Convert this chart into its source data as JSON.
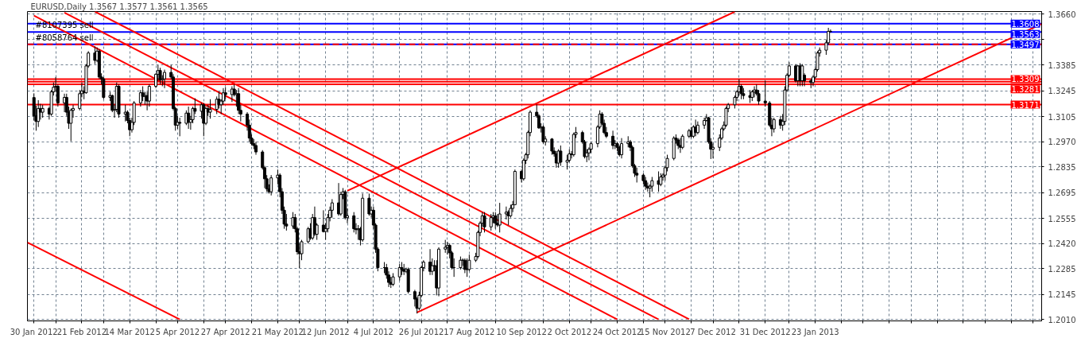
{
  "chart_data": {
    "type": "candlestick",
    "title": "EURUSD,Daily  1.3567 1.3577 1.3561 1.3565",
    "x": [
      "2012-01-30",
      "2012-01-31",
      "2012-02-01",
      "2012-02-02",
      "2012-02-03",
      "2012-02-06",
      "2012-02-07",
      "2012-02-08",
      "2012-02-09",
      "2012-02-10",
      "2012-02-13",
      "2012-02-14",
      "2012-02-15",
      "2012-02-16",
      "2012-02-17",
      "2012-02-20",
      "2012-02-21",
      "2012-02-22",
      "2012-02-23",
      "2012-02-24",
      "2012-02-27",
      "2012-02-28",
      "2012-02-29",
      "2012-03-01",
      "2012-03-02",
      "2012-03-05",
      "2012-03-06",
      "2012-03-07",
      "2012-03-08",
      "2012-03-09",
      "2012-03-12",
      "2012-03-13",
      "2012-03-14",
      "2012-03-15",
      "2012-03-16",
      "2012-03-19",
      "2012-03-20",
      "2012-03-21",
      "2012-03-22",
      "2012-03-23",
      "2012-03-26",
      "2012-03-27",
      "2012-03-28",
      "2012-03-29",
      "2012-03-30",
      "2012-04-02",
      "2012-04-03",
      "2012-04-04",
      "2012-04-05",
      "2012-04-06",
      "2012-04-09",
      "2012-04-10",
      "2012-04-11",
      "2012-04-12",
      "2012-04-13",
      "2012-04-16",
      "2012-04-17",
      "2012-04-18",
      "2012-04-19",
      "2012-04-20",
      "2012-04-23",
      "2012-04-24",
      "2012-04-25",
      "2012-04-26",
      "2012-04-27",
      "2012-04-30",
      "2012-05-01",
      "2012-05-02",
      "2012-05-03",
      "2012-05-04",
      "2012-05-07",
      "2012-05-08",
      "2012-05-09",
      "2012-05-10",
      "2012-05-11",
      "2012-05-14",
      "2012-05-15",
      "2012-05-16",
      "2012-05-17",
      "2012-05-18",
      "2012-05-21",
      "2012-05-22",
      "2012-05-23",
      "2012-05-24",
      "2012-05-25",
      "2012-05-28",
      "2012-05-29",
      "2012-05-30",
      "2012-05-31",
      "2012-06-01",
      "2012-06-04",
      "2012-06-05",
      "2012-06-06",
      "2012-06-07",
      "2012-06-08",
      "2012-06-11",
      "2012-06-12",
      "2012-06-13",
      "2012-06-14",
      "2012-06-15",
      "2012-06-18",
      "2012-06-19",
      "2012-06-20",
      "2012-06-21",
      "2012-06-22",
      "2012-06-25",
      "2012-06-26",
      "2012-06-27",
      "2012-06-28",
      "2012-06-29",
      "2012-07-02",
      "2012-07-03",
      "2012-07-04",
      "2012-07-05",
      "2012-07-06",
      "2012-07-09",
      "2012-07-10",
      "2012-07-11",
      "2012-07-12",
      "2012-07-13",
      "2012-07-16",
      "2012-07-17",
      "2012-07-18",
      "2012-07-19",
      "2012-07-20",
      "2012-07-23",
      "2012-07-24",
      "2012-07-25",
      "2012-07-26",
      "2012-07-27",
      "2012-07-30",
      "2012-07-31",
      "2012-08-01",
      "2012-08-02",
      "2012-08-03",
      "2012-08-06",
      "2012-08-07",
      "2012-08-08",
      "2012-08-09",
      "2012-08-10",
      "2012-08-13",
      "2012-08-14",
      "2012-08-15",
      "2012-08-16",
      "2012-08-17",
      "2012-08-20",
      "2012-08-21",
      "2012-08-22",
      "2012-08-23",
      "2012-08-24",
      "2012-08-27",
      "2012-08-28",
      "2012-08-29",
      "2012-08-30",
      "2012-08-31",
      "2012-09-03",
      "2012-09-04",
      "2012-09-05",
      "2012-09-06",
      "2012-09-07",
      "2012-09-10",
      "2012-09-11",
      "2012-09-12",
      "2012-09-13",
      "2012-09-14",
      "2012-09-17",
      "2012-09-18",
      "2012-09-19",
      "2012-09-20",
      "2012-09-21",
      "2012-09-24",
      "2012-09-25",
      "2012-09-26",
      "2012-09-27",
      "2012-09-28",
      "2012-10-01",
      "2012-10-02",
      "2012-10-03",
      "2012-10-04",
      "2012-10-05",
      "2012-10-08",
      "2012-10-09",
      "2012-10-10",
      "2012-10-11",
      "2012-10-12",
      "2012-10-15",
      "2012-10-16",
      "2012-10-17",
      "2012-10-18",
      "2012-10-19",
      "2012-10-22",
      "2012-10-23",
      "2012-10-24",
      "2012-10-25",
      "2012-10-26",
      "2012-10-29",
      "2012-10-30",
      "2012-10-31",
      "2012-11-01",
      "2012-11-02",
      "2012-11-05",
      "2012-11-06",
      "2012-11-07",
      "2012-11-08",
      "2012-11-09",
      "2012-11-12",
      "2012-11-13",
      "2012-11-14",
      "2012-11-15",
      "2012-11-16",
      "2012-11-19",
      "2012-11-20",
      "2012-11-21",
      "2012-11-22",
      "2012-11-23",
      "2012-11-26",
      "2012-11-27",
      "2012-11-28",
      "2012-11-29",
      "2012-11-30",
      "2012-12-03",
      "2012-12-04",
      "2012-12-05",
      "2012-12-06",
      "2012-12-07",
      "2012-12-10",
      "2012-12-11",
      "2012-12-12",
      "2012-12-13",
      "2012-12-14",
      "2012-12-17",
      "2012-12-18",
      "2012-12-19",
      "2012-12-20",
      "2012-12-21",
      "2012-12-24",
      "2012-12-25",
      "2012-12-26",
      "2012-12-27",
      "2012-12-28",
      "2012-12-31",
      "2013-01-02",
      "2013-01-03",
      "2013-01-04",
      "2013-01-07",
      "2013-01-08",
      "2013-01-09",
      "2013-01-10",
      "2013-01-11",
      "2013-01-14",
      "2013-01-15",
      "2013-01-16",
      "2013-01-17",
      "2013-01-18",
      "2013-01-21",
      "2013-01-22",
      "2013-01-23",
      "2013-01-24",
      "2013-01-25",
      "2013-01-28",
      "2013-01-29",
      "2013-01-30"
    ],
    "ohlc": [
      [
        1.3209,
        1.3232,
        1.3085,
        1.311
      ],
      [
        1.311,
        1.3165,
        1.303,
        1.308
      ],
      [
        1.308,
        1.3195,
        1.305,
        1.315
      ],
      [
        1.315,
        1.3175,
        1.309,
        1.313
      ],
      [
        1.313,
        1.317,
        1.31,
        1.315
      ],
      [
        1.315,
        1.316,
        1.309,
        1.312
      ],
      [
        1.312,
        1.325,
        1.311,
        1.324
      ],
      [
        1.324,
        1.329,
        1.322,
        1.3265
      ],
      [
        1.3265,
        1.332,
        1.324,
        1.327
      ],
      [
        1.327,
        1.328,
        1.316,
        1.318
      ],
      [
        1.318,
        1.323,
        1.313,
        1.321
      ],
      [
        1.321,
        1.323,
        1.311,
        1.313
      ],
      [
        1.313,
        1.316,
        1.304,
        1.307
      ],
      [
        1.307,
        1.315,
        1.2973,
        1.314
      ],
      [
        1.314,
        1.317,
        1.31,
        1.315
      ],
      [
        1.315,
        1.325,
        1.314,
        1.323
      ],
      [
        1.323,
        1.329,
        1.321,
        1.3245
      ],
      [
        1.3245,
        1.327,
        1.32,
        1.3235
      ],
      [
        1.3235,
        1.339,
        1.323,
        1.338
      ],
      [
        1.338,
        1.346,
        1.337,
        1.345
      ],
      [
        1.345,
        1.3486,
        1.339,
        1.341
      ],
      [
        1.341,
        1.348,
        1.34,
        1.346
      ],
      [
        1.346,
        1.347,
        1.331,
        1.332
      ],
      [
        1.332,
        1.334,
        1.328,
        1.331
      ],
      [
        1.331,
        1.332,
        1.32,
        1.321
      ],
      [
        1.321,
        1.324,
        1.319,
        1.322
      ],
      [
        1.322,
        1.3225,
        1.313,
        1.314
      ],
      [
        1.314,
        1.317,
        1.31,
        1.3145
      ],
      [
        1.3145,
        1.329,
        1.313,
        1.327
      ],
      [
        1.327,
        1.328,
        1.31,
        1.312
      ],
      [
        1.312,
        1.317,
        1.308,
        1.313
      ],
      [
        1.313,
        1.314,
        1.307,
        1.3085
      ],
      [
        1.3085,
        1.31,
        1.3,
        1.3035
      ],
      [
        1.3035,
        1.31,
        1.302,
        1.3075
      ],
      [
        1.3075,
        1.319,
        1.306,
        1.318
      ],
      [
        1.318,
        1.325,
        1.316,
        1.3235
      ],
      [
        1.3235,
        1.327,
        1.319,
        1.3215
      ],
      [
        1.3215,
        1.324,
        1.317,
        1.322
      ],
      [
        1.322,
        1.324,
        1.314,
        1.319
      ],
      [
        1.319,
        1.328,
        1.316,
        1.327
      ],
      [
        1.327,
        1.334,
        1.326,
        1.3335
      ],
      [
        1.3335,
        1.3385,
        1.33,
        1.3355
      ],
      [
        1.3355,
        1.337,
        1.328,
        1.3305
      ],
      [
        1.3305,
        1.333,
        1.327,
        1.331
      ],
      [
        1.331,
        1.336,
        1.326,
        1.3345
      ],
      [
        1.3345,
        1.3385,
        1.331,
        1.332
      ],
      [
        1.332,
        1.3335,
        1.314,
        1.315
      ],
      [
        1.315,
        1.316,
        1.303,
        1.306
      ],
      [
        1.306,
        1.311,
        1.304,
        1.3075
      ],
      [
        1.3075,
        1.31,
        1.3,
        1.307
      ],
      [
        1.307,
        1.314,
        1.306,
        1.3125
      ],
      [
        1.3125,
        1.316,
        1.304,
        1.3075
      ],
      [
        1.3075,
        1.311,
        1.3035,
        1.309
      ],
      [
        1.309,
        1.316,
        1.307,
        1.315
      ],
      [
        1.315,
        1.3205,
        1.312,
        1.3135
      ],
      [
        1.3135,
        1.318,
        1.3095,
        1.317
      ],
      [
        1.317,
        1.318,
        1.3,
        1.307
      ],
      [
        1.307,
        1.316,
        1.306,
        1.315
      ],
      [
        1.315,
        1.317,
        1.311,
        1.313
      ],
      [
        1.313,
        1.32,
        1.3095,
        1.3145
      ],
      [
        1.3145,
        1.3215,
        1.312,
        1.32
      ],
      [
        1.32,
        1.324,
        1.315,
        1.317
      ],
      [
        1.317,
        1.32,
        1.312,
        1.319
      ],
      [
        1.319,
        1.326,
        1.317,
        1.3235
      ],
      [
        1.3235,
        1.3265,
        1.32,
        1.3225
      ],
      [
        1.3225,
        1.327,
        1.3185,
        1.3255
      ],
      [
        1.3255,
        1.328,
        1.3215,
        1.3225
      ],
      [
        1.3225,
        1.325,
        1.316,
        1.323
      ],
      [
        1.323,
        1.326,
        1.312,
        1.314
      ],
      [
        1.314,
        1.317,
        1.308,
        1.312
      ],
      [
        1.312,
        1.313,
        1.303,
        1.306
      ],
      [
        1.306,
        1.309,
        1.297,
        1.299
      ],
      [
        1.299,
        1.301,
        1.295,
        1.296
      ],
      [
        1.296,
        1.2985,
        1.293,
        1.295
      ],
      [
        1.295,
        1.297,
        1.29,
        1.2915
      ],
      [
        1.2915,
        1.2925,
        1.282,
        1.283
      ],
      [
        1.283,
        1.284,
        1.272,
        1.277
      ],
      [
        1.277,
        1.279,
        1.27,
        1.2715
      ],
      [
        1.2715,
        1.274,
        1.269,
        1.27
      ],
      [
        1.27,
        1.279,
        1.268,
        1.2775
      ],
      [
        1.2775,
        1.282,
        1.274,
        1.279
      ],
      [
        1.279,
        1.28,
        1.267,
        1.27
      ],
      [
        1.27,
        1.272,
        1.258,
        1.26
      ],
      [
        1.26,
        1.262,
        1.25,
        1.2525
      ],
      [
        1.2525,
        1.258,
        1.249,
        1.2515
      ],
      [
        1.2515,
        1.259,
        1.25,
        1.256
      ],
      [
        1.256,
        1.258,
        1.248,
        1.25
      ],
      [
        1.25,
        1.251,
        1.236,
        1.2376
      ],
      [
        1.2376,
        1.242,
        1.2288,
        1.2365
      ],
      [
        1.2365,
        1.244,
        1.233,
        1.243
      ],
      [
        1.243,
        1.251,
        1.242,
        1.25
      ],
      [
        1.25,
        1.253,
        1.244,
        1.245
      ],
      [
        1.245,
        1.258,
        1.244,
        1.256
      ],
      [
        1.256,
        1.262,
        1.246,
        1.247
      ],
      [
        1.247,
        1.253,
        1.244,
        1.252
      ],
      [
        1.252,
        1.26,
        1.248,
        1.2485
      ],
      [
        1.2485,
        1.253,
        1.244,
        1.25
      ],
      [
        1.25,
        1.258,
        1.248,
        1.256
      ],
      [
        1.256,
        1.262,
        1.254,
        1.26
      ],
      [
        1.26,
        1.266,
        1.256,
        1.264
      ],
      [
        1.264,
        1.2747,
        1.257,
        1.258
      ],
      [
        1.258,
        1.27,
        1.257,
        1.2685
      ],
      [
        1.2685,
        1.272,
        1.266,
        1.27
      ],
      [
        1.27,
        1.271,
        1.255,
        1.256
      ],
      [
        1.256,
        1.261,
        1.253,
        1.257
      ],
      [
        1.257,
        1.259,
        1.248,
        1.25
      ],
      [
        1.25,
        1.253,
        1.247,
        1.2495
      ],
      [
        1.2495,
        1.252,
        1.244,
        1.25
      ],
      [
        1.25,
        1.251,
        1.241,
        1.244
      ],
      [
        1.244,
        1.269,
        1.243,
        1.2665
      ],
      [
        1.2665,
        1.269,
        1.257,
        1.258
      ],
      [
        1.258,
        1.262,
        1.256,
        1.26
      ],
      [
        1.26,
        1.262,
        1.25,
        1.252
      ],
      [
        1.252,
        1.253,
        1.237,
        1.239
      ],
      [
        1.239,
        1.24,
        1.227,
        1.229
      ],
      [
        1.229,
        1.232,
        1.226,
        1.229
      ],
      [
        1.229,
        1.231,
        1.223,
        1.225
      ],
      [
        1.225,
        1.227,
        1.2185,
        1.221
      ],
      [
        1.221,
        1.224,
        1.218,
        1.22
      ],
      [
        1.22,
        1.226,
        1.219,
        1.224
      ],
      [
        1.224,
        1.231,
        1.222,
        1.229
      ],
      [
        1.229,
        1.232,
        1.225,
        1.228
      ],
      [
        1.228,
        1.231,
        1.225,
        1.227
      ],
      [
        1.227,
        1.229,
        1.226,
        1.228
      ],
      [
        1.228,
        1.229,
        1.215,
        1.216
      ],
      [
        1.216,
        1.217,
        1.208,
        1.212
      ],
      [
        1.212,
        1.213,
        1.2042,
        1.207
      ],
      [
        1.207,
        1.216,
        1.206,
        1.214
      ],
      [
        1.214,
        1.23,
        1.213,
        1.229
      ],
      [
        1.229,
        1.233,
        1.227,
        1.232
      ],
      [
        1.232,
        1.239,
        1.225,
        1.227
      ],
      [
        1.227,
        1.234,
        1.225,
        1.23
      ],
      [
        1.23,
        1.233,
        1.227,
        1.23
      ],
      [
        1.23,
        1.233,
        1.214,
        1.218
      ],
      [
        1.218,
        1.24,
        1.2135,
        1.239
      ],
      [
        1.239,
        1.244,
        1.237,
        1.24
      ],
      [
        1.24,
        1.243,
        1.236,
        1.241
      ],
      [
        1.241,
        1.242,
        1.234,
        1.237
      ],
      [
        1.237,
        1.238,
        1.228,
        1.229
      ],
      [
        1.229,
        1.234,
        1.224,
        1.229
      ],
      [
        1.229,
        1.235,
        1.228,
        1.233
      ],
      [
        1.233,
        1.234,
        1.23,
        1.233
      ],
      [
        1.233,
        1.234,
        1.226,
        1.228
      ],
      [
        1.228,
        1.234,
        1.224,
        1.228
      ],
      [
        1.228,
        1.236,
        1.227,
        1.233
      ],
      [
        1.233,
        1.237,
        1.232,
        1.235
      ],
      [
        1.235,
        1.249,
        1.234,
        1.248
      ],
      [
        1.248,
        1.254,
        1.246,
        1.253
      ],
      [
        1.253,
        1.259,
        1.251,
        1.257
      ],
      [
        1.257,
        1.259,
        1.248,
        1.251
      ],
      [
        1.251,
        1.258,
        1.249,
        1.256
      ],
      [
        1.256,
        1.259,
        1.253,
        1.257
      ],
      [
        1.257,
        1.259,
        1.25,
        1.253
      ],
      [
        1.253,
        1.258,
        1.251,
        1.252
      ],
      [
        1.252,
        1.264,
        1.248,
        1.258
      ],
      [
        1.258,
        1.262,
        1.255,
        1.259
      ],
      [
        1.259,
        1.26,
        1.252,
        1.257
      ],
      [
        1.257,
        1.263,
        1.256,
        1.261
      ],
      [
        1.261,
        1.265,
        1.259,
        1.263
      ],
      [
        1.263,
        1.282,
        1.263,
        1.281
      ],
      [
        1.281,
        1.282,
        1.275,
        1.277
      ],
      [
        1.277,
        1.288,
        1.276,
        1.287
      ],
      [
        1.287,
        1.291,
        1.285,
        1.29
      ],
      [
        1.29,
        1.303,
        1.288,
        1.302
      ],
      [
        1.302,
        1.314,
        1.3,
        1.313
      ],
      [
        1.313,
        1.3172,
        1.31,
        1.311
      ],
      [
        1.311,
        1.312,
        1.304,
        1.3045
      ],
      [
        1.3045,
        1.307,
        1.302,
        1.305
      ],
      [
        1.305,
        1.306,
        1.296,
        1.297
      ],
      [
        1.297,
        1.3,
        1.295,
        1.2985
      ],
      [
        1.2985,
        1.299,
        1.29,
        1.292
      ],
      [
        1.292,
        1.294,
        1.289,
        1.2905
      ],
      [
        1.2905,
        1.292,
        1.283,
        1.2855
      ],
      [
        1.2855,
        1.293,
        1.283,
        1.292
      ],
      [
        1.292,
        1.295,
        1.284,
        1.286
      ],
      [
        1.286,
        1.29,
        1.282,
        1.287
      ],
      [
        1.287,
        1.293,
        1.286,
        1.2905
      ],
      [
        1.2905,
        1.292,
        1.288,
        1.29
      ],
      [
        1.29,
        1.302,
        1.289,
        1.301
      ],
      [
        1.301,
        1.305,
        1.299,
        1.302
      ],
      [
        1.302,
        1.303,
        1.296,
        1.297
      ],
      [
        1.297,
        1.298,
        1.288,
        1.289
      ],
      [
        1.289,
        1.293,
        1.286,
        1.291
      ],
      [
        1.291,
        1.294,
        1.287,
        1.293
      ],
      [
        1.293,
        1.297,
        1.291,
        1.296
      ],
      [
        1.296,
        1.306,
        1.294,
        1.305
      ],
      [
        1.305,
        1.314,
        1.304,
        1.312
      ],
      [
        1.312,
        1.313,
        1.306,
        1.307
      ],
      [
        1.307,
        1.309,
        1.301,
        1.302
      ],
      [
        1.302,
        1.305,
        1.299,
        1.3
      ],
      [
        1.3,
        1.303,
        1.293,
        1.295
      ],
      [
        1.295,
        1.298,
        1.293,
        1.296
      ],
      [
        1.296,
        1.297,
        1.292,
        1.294
      ],
      [
        1.294,
        1.295,
        1.289,
        1.29
      ],
      [
        1.29,
        1.299,
        1.288,
        1.296
      ],
      [
        1.296,
        1.3,
        1.294,
        1.297
      ],
      [
        1.297,
        1.298,
        1.292,
        1.294
      ],
      [
        1.294,
        1.295,
        1.283,
        1.284
      ],
      [
        1.284,
        1.285,
        1.278,
        1.28
      ],
      [
        1.28,
        1.283,
        1.275,
        1.279
      ],
      [
        1.279,
        1.28,
        1.274,
        1.276
      ],
      [
        1.276,
        1.278,
        1.271,
        1.273
      ],
      [
        1.273,
        1.275,
        1.27,
        1.272
      ],
      [
        1.272,
        1.274,
        1.267,
        1.273
      ],
      [
        1.273,
        1.278,
        1.27,
        1.276
      ],
      [
        1.276,
        1.281,
        1.27,
        1.274
      ],
      [
        1.274,
        1.28,
        1.273,
        1.278
      ],
      [
        1.278,
        1.28,
        1.276,
        1.279
      ],
      [
        1.279,
        1.284,
        1.276,
        1.283
      ],
      [
        1.283,
        1.29,
        1.281,
        1.288
      ],
      [
        1.288,
        1.3,
        1.287,
        1.299
      ],
      [
        1.299,
        1.301,
        1.296,
        1.298
      ],
      [
        1.298,
        1.299,
        1.293,
        1.295
      ],
      [
        1.295,
        1.299,
        1.291,
        1.294
      ],
      [
        1.294,
        1.301,
        1.293,
        1.3
      ],
      [
        1.3,
        1.304,
        1.299,
        1.303
      ],
      [
        1.303,
        1.305,
        1.299,
        1.3
      ],
      [
        1.3,
        1.306,
        1.299,
        1.305
      ],
      [
        1.305,
        1.309,
        1.3,
        1.302
      ],
      [
        1.302,
        1.308,
        1.301,
        1.306
      ],
      [
        1.306,
        1.31,
        1.304,
        1.3085
      ],
      [
        1.3085,
        1.312,
        1.308,
        1.31
      ],
      [
        1.31,
        1.3105,
        1.296,
        1.297
      ],
      [
        1.297,
        1.299,
        1.2877,
        1.293
      ],
      [
        1.293,
        1.296,
        1.288,
        1.294
      ],
      [
        1.294,
        1.301,
        1.292,
        1.299
      ],
      [
        1.299,
        1.305,
        1.298,
        1.304
      ],
      [
        1.304,
        1.308,
        1.303,
        1.306
      ],
      [
        1.306,
        1.316,
        1.305,
        1.315
      ],
      [
        1.315,
        1.318,
        1.313,
        1.317
      ],
      [
        1.317,
        1.322,
        1.315,
        1.321
      ],
      [
        1.321,
        1.325,
        1.319,
        1.324
      ],
      [
        1.324,
        1.3308,
        1.322,
        1.327
      ],
      [
        1.327,
        1.328,
        1.32,
        1.323
      ],
      [
        1.323,
        1.326,
        1.32,
        1.322
      ],
      [
        1.322,
        1.325,
        1.318,
        1.321
      ],
      [
        1.321,
        1.325,
        1.319,
        1.324
      ],
      [
        1.324,
        1.327,
        1.321,
        1.325
      ],
      [
        1.325,
        1.328,
        1.322,
        1.323
      ],
      [
        1.323,
        1.325,
        1.317,
        1.319
      ],
      [
        1.319,
        1.33,
        1.316,
        1.318
      ],
      [
        1.318,
        1.319,
        1.305,
        1.306
      ],
      [
        1.306,
        1.31,
        1.3,
        1.304
      ],
      [
        1.304,
        1.31,
        1.302,
        1.309
      ],
      [
        1.309,
        1.311,
        1.304,
        1.306
      ],
      [
        1.306,
        1.312,
        1.303,
        1.308
      ],
      [
        1.308,
        1.327,
        1.306,
        1.325
      ],
      [
        1.325,
        1.334,
        1.324,
        1.333
      ],
      [
        1.333,
        1.34,
        1.332,
        1.338
      ],
      [
        1.338,
        1.339,
        1.329,
        1.33
      ],
      [
        1.33,
        1.3385,
        1.327,
        1.338
      ],
      [
        1.338,
        1.3395,
        1.327,
        1.33
      ],
      [
        1.33,
        1.339,
        1.327,
        1.338
      ],
      [
        1.333,
        1.334,
        1.327,
        1.33
      ],
      [
        1.33,
        1.331,
        1.326,
        1.329
      ],
      [
        1.329,
        1.333,
        1.327,
        1.332
      ],
      [
        1.332,
        1.337,
        1.331,
        1.336
      ],
      [
        1.336,
        1.346,
        1.335,
        1.345
      ],
      [
        1.345,
        1.348,
        1.343,
        1.3465
      ],
      [
        1.3465,
        1.352,
        1.344,
        1.3505
      ],
      [
        1.3505,
        1.3586,
        1.3495,
        1.3567
      ],
      [
        1.3567,
        1.3577,
        1.3561,
        1.3565
      ]
    ],
    "series": [
      {
        "type": "line",
        "color": "#ff0000",
        "x": [
          "2012-01-27",
          "2012-04-06"
        ],
        "values": [
          1.2426,
          1.201
        ]
      },
      {
        "type": "line",
        "color": "#ff0000",
        "x": [
          "2012-02-27",
          "2012-11-26"
        ],
        "values": [
          1.3674,
          1.2011
        ]
      },
      {
        "type": "line",
        "color": "#ff0000",
        "x": [
          "2012-02-13",
          "2012-11-12"
        ],
        "values": [
          1.3668,
          1.201
        ]
      },
      {
        "type": "line",
        "color": "#ff0000",
        "x": [
          "2012-01-30",
          "2012-10-24"
        ],
        "values": [
          1.3652,
          1.201
        ]
      },
      {
        "type": "line",
        "color": "#ff0000",
        "x": [
          "2012-06-22",
          "2012-12-17"
        ],
        "values": [
          1.2705,
          1.3673
        ]
      },
      {
        "type": "line",
        "color": "#ff0000",
        "x": [
          "2012-07-24",
          "2013-05-07"
        ],
        "values": [
          1.2048,
          1.3607
        ]
      }
    ],
    "ref_lines": [
      {
        "axis": "y",
        "value": 1.3608,
        "label": "1.3608",
        "color": "#0000ff"
      },
      {
        "axis": "y",
        "value": 1.3563,
        "label": "1.3563",
        "color": "#0000ff"
      },
      {
        "axis": "y",
        "value": 1.3497,
        "label": "1.3497",
        "color": "#0000ff"
      },
      {
        "axis": "y",
        "value": 1.3497,
        "label": null,
        "color": "#ff0000",
        "line_style": "dashed"
      },
      {
        "axis": "y",
        "value": 1.3309,
        "label": "1.3309",
        "color": "#ff0000"
      },
      {
        "axis": "y",
        "value": 1.3295,
        "label": null,
        "color": "#ff0000"
      },
      {
        "axis": "y",
        "value": 1.3281,
        "label": "1.3281",
        "color": "#ff0000"
      },
      {
        "axis": "y",
        "value": 1.3171,
        "label": "1.3171",
        "color": "#ff0000"
      }
    ],
    "annotations": [
      {
        "text": "#8107395 sell",
        "y": 1.3563
      },
      {
        "text": "#8058764 sell",
        "y": 1.3497
      }
    ],
    "xlim": [
      "2012-01-27",
      "2013-05-07"
    ],
    "ylim": [
      1.2002,
      1.3674
    ],
    "xticks": [
      {
        "value": "2012-01-30",
        "label": "30 Jan 2012"
      },
      {
        "value": "2012-02-09",
        "label": null
      },
      {
        "value": "2012-02-21",
        "label": "21 Feb 2012"
      },
      {
        "value": "2012-03-02",
        "label": null
      },
      {
        "value": "2012-03-14",
        "label": "14 Mar 2012"
      },
      {
        "value": "2012-03-26",
        "label": null
      },
      {
        "value": "2012-04-05",
        "label": "5 Apr 2012"
      },
      {
        "value": "2012-04-17",
        "label": null
      },
      {
        "value": "2012-04-27",
        "label": "27 Apr 2012"
      },
      {
        "value": "2012-05-09",
        "label": null
      },
      {
        "value": "2012-05-21",
        "label": "21 May 2012"
      },
      {
        "value": "2012-05-31",
        "label": null
      },
      {
        "value": "2012-06-12",
        "label": "12 Jun 2012"
      },
      {
        "value": "2012-06-22",
        "label": null
      },
      {
        "value": "2012-07-04",
        "label": "4 Jul 2012"
      },
      {
        "value": "2012-07-16",
        "label": null
      },
      {
        "value": "2012-07-26",
        "label": "26 Jul 2012"
      },
      {
        "value": "2012-08-07",
        "label": null
      },
      {
        "value": "2012-08-17",
        "label": "17 Aug 2012"
      },
      {
        "value": "2012-08-29",
        "label": null
      },
      {
        "value": "2012-09-10",
        "label": "10 Sep 2012"
      },
      {
        "value": "2012-09-20",
        "label": null
      },
      {
        "value": "2012-10-02",
        "label": "2 Oct 2012"
      },
      {
        "value": "2012-10-12",
        "label": null
      },
      {
        "value": "2012-10-24",
        "label": "24 Oct 2012"
      },
      {
        "value": "2012-11-05",
        "label": null
      },
      {
        "value": "2012-11-15",
        "label": "15 Nov 2012"
      },
      {
        "value": "2012-11-27",
        "label": null
      },
      {
        "value": "2012-12-07",
        "label": "7 Dec 2012"
      },
      {
        "value": "2012-12-19",
        "label": null
      },
      {
        "value": "2012-12-31",
        "label": "31 Dec 2012"
      },
      {
        "value": "2013-01-11",
        "label": null
      },
      {
        "value": "2013-01-23",
        "label": "23 Jan 2013"
      },
      {
        "value": "2013-02-04",
        "label": null
      },
      {
        "value": "2013-02-14",
        "label": null
      },
      {
        "value": "2013-02-26",
        "label": null
      },
      {
        "value": "2013-03-08",
        "label": null
      },
      {
        "value": "2013-03-20",
        "label": null
      },
      {
        "value": "2013-04-01",
        "label": null
      },
      {
        "value": "2013-04-11",
        "label": null
      },
      {
        "value": "2013-04-23",
        "label": null
      },
      {
        "value": "2013-05-03",
        "label": null
      }
    ],
    "yticks": [
      {
        "value": 1.201,
        "label": "1.2010"
      },
      1.2145,
      1.2285,
      {
        "value": 1.242,
        "label": "1.2420"
      },
      1.2555,
      1.2695,
      1.2835,
      {
        "value": 1.297,
        "label": "1.2970"
      },
      1.3105,
      1.3245,
      1.3385,
      {
        "value": 1.3525,
        "label": null
      },
      {
        "value": 1.366,
        "label": "1.3660"
      }
    ],
    "grid": true
  }
}
